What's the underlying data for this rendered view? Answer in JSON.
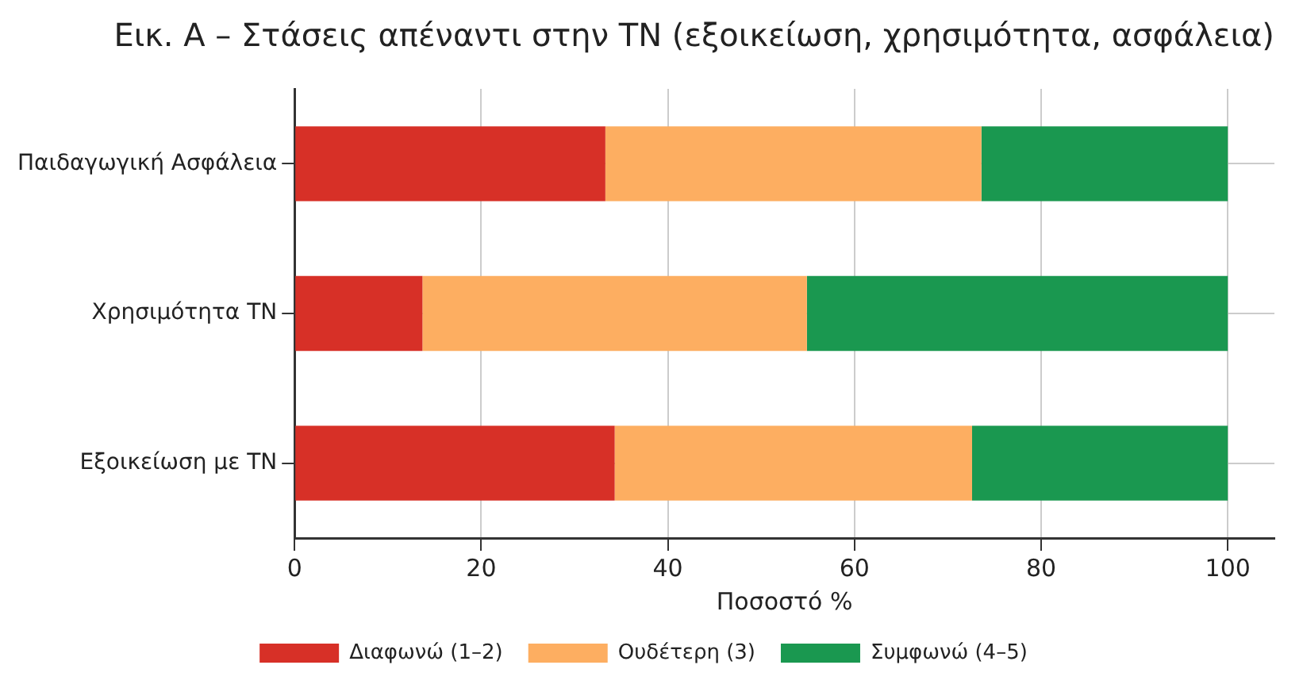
{
  "chart_data": {
    "type": "bar",
    "orientation": "horizontal",
    "stacked": true,
    "title": "Εικ. Α – Στάσεις απέναντι στην ΤΝ (εξοικείωση, χρησιμότητα, ασφάλεια)",
    "xlabel": "Ποσοστό %",
    "categories": [
      "Παιδαγωγική Ασφάλεια",
      "Χρησιμότητα ΤΝ",
      "Εξοικείωση με ΤΝ"
    ],
    "series": [
      {
        "name": "Διαφωνώ (1–2)",
        "color": "#d73027",
        "values": [
          33.3,
          13.7,
          34.3
        ]
      },
      {
        "name": "Ουδέτερη (3)",
        "color": "#fdae61",
        "values": [
          40.3,
          41.2,
          38.3
        ]
      },
      {
        "name": "Συμφωνώ (4–5)",
        "color": "#1a9850",
        "values": [
          26.4,
          45.1,
          27.4
        ]
      }
    ],
    "xlim": [
      0,
      105
    ],
    "xticks": [
      0,
      20,
      40,
      60,
      80,
      100
    ],
    "grid": true,
    "legend": "bottom"
  }
}
